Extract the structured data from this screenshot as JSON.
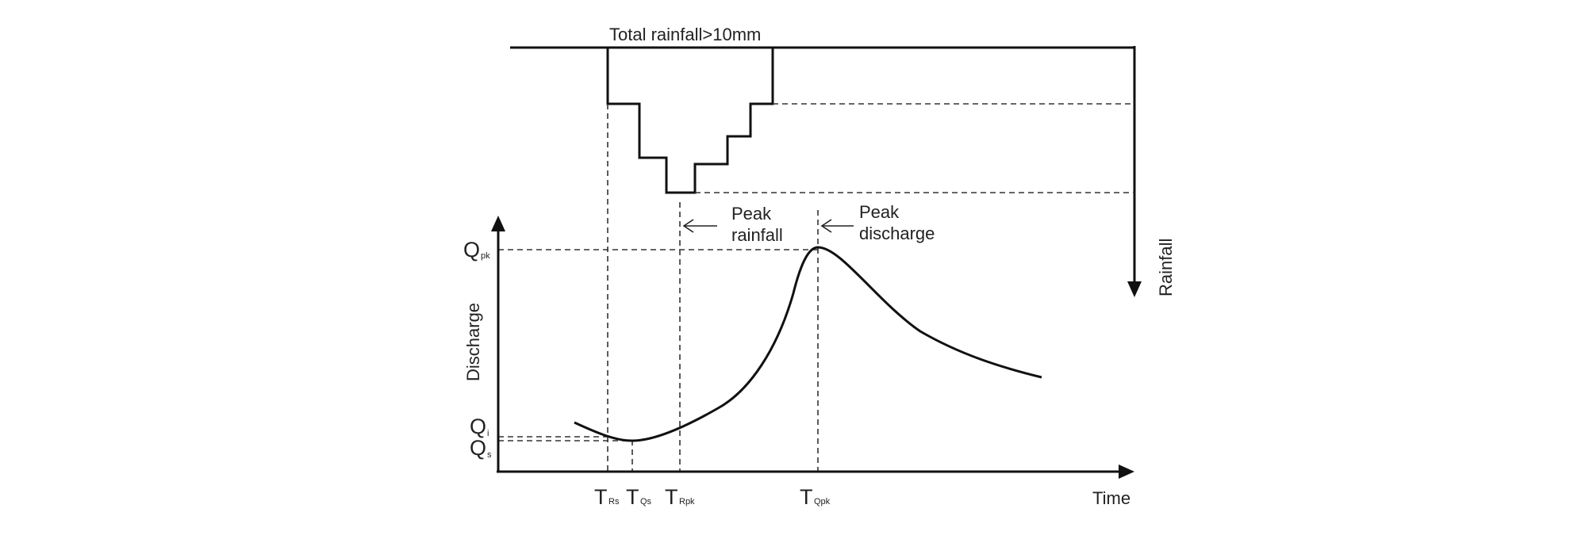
{
  "rainfall": {
    "total_label": "Total rainfall>10mm",
    "axis_label": "Rainfall"
  },
  "annotations": {
    "peak_rainfall": [
      "Peak",
      "rainfall"
    ],
    "peak_discharge": [
      "Peak",
      "discharge"
    ]
  },
  "axes": {
    "y_label": "Discharge",
    "x_label": "Time"
  },
  "y_marks": {
    "q_pk": {
      "main": "Q",
      "sub": "pk"
    },
    "q_i": {
      "main": "Q",
      "sub": "i"
    },
    "q_s": {
      "main": "Q",
      "sub": "s"
    }
  },
  "x_marks": {
    "t_rs": {
      "main": "T",
      "sub": "Rs"
    },
    "t_qs": {
      "main": "T",
      "sub": "Qs"
    },
    "t_rpk": {
      "main": "T",
      "sub": "Rpk"
    },
    "t_qpk": {
      "main": "T",
      "sub": "Qpk"
    }
  }
}
